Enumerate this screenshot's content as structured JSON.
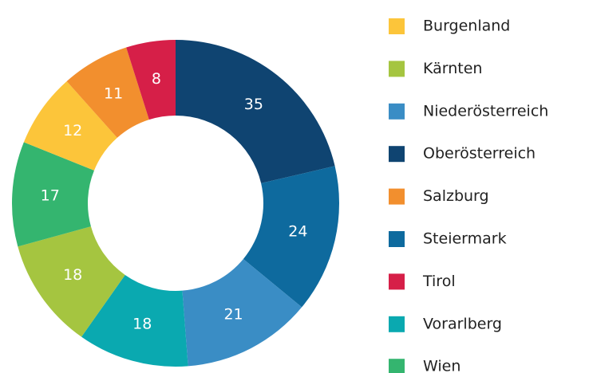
{
  "chart_data": {
    "type": "donut",
    "categories": [
      "Oberösterreich",
      "Steiermark",
      "Niederösterreich",
      "Vorarlberg",
      "Kärnten",
      "Wien",
      "Burgenland",
      "Salzburg",
      "Tirol"
    ],
    "values": [
      35,
      24,
      21,
      18,
      18,
      17,
      12,
      11,
      8
    ],
    "colors": [
      "#0f4471",
      "#0e6a9e",
      "#3a8dc5",
      "#0aa9b0",
      "#a5c540",
      "#34b56f",
      "#fcc53a",
      "#f28f2e",
      "#d61f48"
    ],
    "legend": "right"
  }
}
